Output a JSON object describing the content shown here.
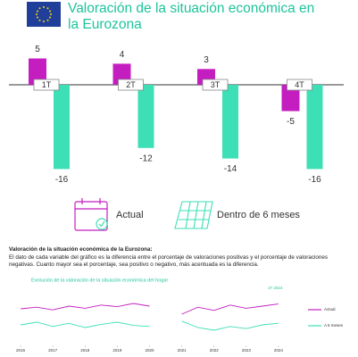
{
  "chart_data": [
    {
      "type": "bar",
      "title": "Valoración de la situación económica en la Eurozona",
      "categories": [
        "1T",
        "2T",
        "3T",
        "4T"
      ],
      "series": [
        {
          "name": "Actual",
          "color": "#c41ec0",
          "values": [
            5,
            4,
            3,
            -5
          ]
        },
        {
          "name": "Dentro de 6 meses",
          "color": "#3ddfb6",
          "values": [
            -16,
            -12,
            -14,
            -16
          ]
        }
      ],
      "description_title": "Valoración de la situación económica de la Eurozona:",
      "description": "El dato de cada variable del gráfico es la diferencia entre el porcentaje de valoraciones positivas y el porcentaje de valoraciones negativas. Cuanto mayor sea el porcentaje, sea positivo o negativo, más acentuada es la diferencia."
    },
    {
      "type": "line",
      "title": "Evolución de la valoración de la situación económica del hogar",
      "annotation": "1T 2024",
      "x": [
        2016,
        2016.5,
        2017,
        2017.5,
        2018,
        2018.5,
        2019,
        2019.5,
        2020,
        2020.5,
        2021,
        2021.5,
        2022,
        2022.5,
        2023,
        2023.5,
        2024
      ],
      "series": [
        {
          "name": "Actual",
          "color": "#c41ec0",
          "values": [
            5,
            8,
            3,
            10,
            6,
            12,
            9,
            15,
            10,
            null,
            -5,
            8,
            2,
            12,
            6,
            10,
            14
          ]
        },
        {
          "name": "A 6 meses",
          "color": "#3ddfb6",
          "values": [
            -25,
            -20,
            -28,
            -22,
            -30,
            -24,
            -20,
            -26,
            -28,
            null,
            -18,
            -30,
            -35,
            -28,
            -32,
            -25,
            -22
          ]
        }
      ],
      "xlim": [
        2015.5,
        2024.5
      ],
      "xticks": [
        2016,
        2017,
        2018,
        2019,
        2020,
        2021,
        2022,
        2023,
        2024
      ],
      "ylim": [
        -60,
        40
      ]
    }
  ]
}
